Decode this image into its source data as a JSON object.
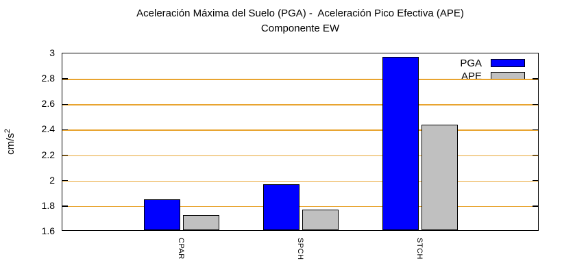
{
  "title": {
    "line1": "Aceleración Máxima del Suelo (PGA) -  Aceleración Pico Efectiva (APE)",
    "line2": "Componente EW"
  },
  "y_axis": {
    "label_base": "cm/s",
    "label_exponent": "2"
  },
  "chart_data": {
    "type": "bar",
    "title": "Aceleración Máxima del Suelo (PGA) - Aceleración Pico Efectiva (APE) / Componente EW",
    "categories": [
      "CPAR",
      "SPCH",
      "STCH"
    ],
    "series": [
      {
        "name": "PGA",
        "color": "#0000ff",
        "values": [
          1.84,
          1.96,
          2.96
        ]
      },
      {
        "name": "APE",
        "color": "#c0c0c0",
        "values": [
          1.72,
          1.76,
          2.43
        ]
      }
    ],
    "xlabel": "",
    "ylabel": "cm/s²",
    "ylim": [
      1.6,
      3.0
    ],
    "y_ticks": [
      {
        "value": 3,
        "label": "3"
      },
      {
        "value": 2.8,
        "label": "2.8"
      },
      {
        "value": 2.6,
        "label": "2.6"
      },
      {
        "value": 2.4,
        "label": "2.4"
      },
      {
        "value": 2.2,
        "label": "2.2"
      },
      {
        "value": 2,
        "label": "2"
      },
      {
        "value": 1.8,
        "label": "1.8"
      },
      {
        "value": 1.6,
        "label": "1.6"
      }
    ],
    "grid": true,
    "grid_color": "#e8a430",
    "border_color": "#000000",
    "legend_position": "top-right"
  }
}
